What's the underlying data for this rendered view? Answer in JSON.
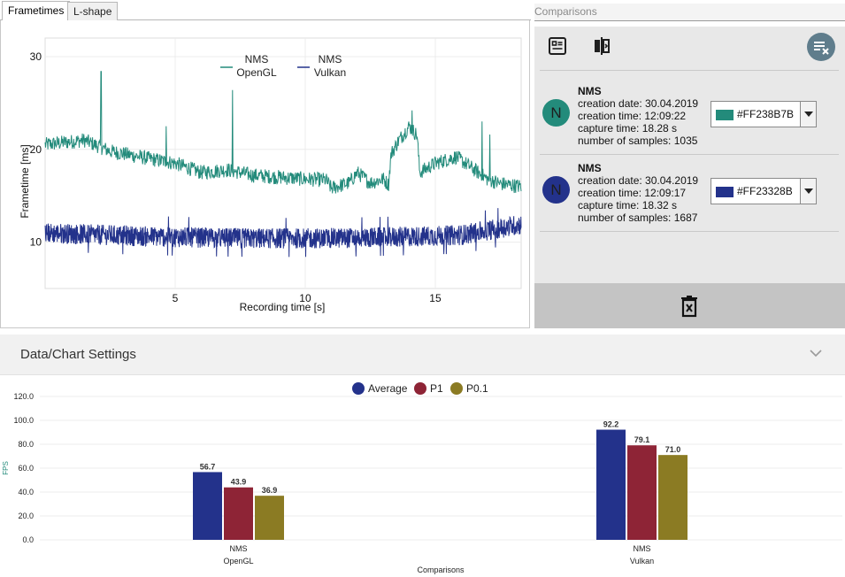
{
  "tabs": [
    {
      "label": "Frametimes",
      "active": true
    },
    {
      "label": "L-shape",
      "active": false
    }
  ],
  "frametimes_chart": {
    "type": "line",
    "title": "",
    "xlabel": "Recording time [s]",
    "ylabel": "Frametime [ms]",
    "xlim": [
      0,
      18.3
    ],
    "ylim": [
      5,
      32
    ],
    "xticks": [
      5,
      10,
      15
    ],
    "yticks": [
      10,
      20,
      30
    ],
    "legend": [
      {
        "line1": "NMS",
        "line2": "OpenGL",
        "color": "#238B7B"
      },
      {
        "line1": "NMS",
        "line2": "Vulkan",
        "color": "#23328B"
      }
    ]
  },
  "comparisons": {
    "title": "Comparisons",
    "entries": [
      {
        "avatar": "N",
        "name": "NMS",
        "creation_date": "creation date: 30.04.2019",
        "creation_time": "creation time: 12:09:22",
        "capture_time": "capture time: 18.28 s",
        "samples": "number of samples: 1035",
        "color": "#238B7B",
        "color_label": "#FF238B7B"
      },
      {
        "avatar": "N",
        "name": "NMS",
        "creation_date": "creation date: 30.04.2019",
        "creation_time": "creation time: 12:09:17",
        "capture_time": "capture time: 18.32 s",
        "samples": "number of samples: 1687",
        "color": "#23328B",
        "color_label": "#FF23328B"
      }
    ]
  },
  "settings": {
    "label": "Data/Chart Settings"
  },
  "chart_data": {
    "type": "bar",
    "title": "",
    "xlabel": "Comparisons",
    "ylabel": "FPS",
    "ylim": [
      0,
      120
    ],
    "yticks": [
      "0.0",
      "20.0",
      "40.0",
      "60.0",
      "80.0",
      "100.0",
      "120.0"
    ],
    "categories": [
      {
        "line1": "NMS",
        "line2": "OpenGL"
      },
      {
        "line1": "NMS",
        "line2": "Vulkan"
      }
    ],
    "series": [
      {
        "name": "Average",
        "color": "#23328B",
        "values": [
          56.7,
          92.2
        ],
        "labels": [
          "56.7",
          "92.2"
        ]
      },
      {
        "name": "P1",
        "color": "#8E2436",
        "values": [
          43.9,
          79.1
        ],
        "labels": [
          "43.9",
          "79.1"
        ]
      },
      {
        "name": "P0.1",
        "color": "#8B7B23",
        "values": [
          36.9,
          71.0
        ],
        "labels": [
          "36.9",
          "71.0"
        ]
      }
    ]
  }
}
